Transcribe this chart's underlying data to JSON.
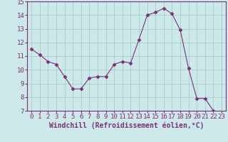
{
  "x": [
    0,
    1,
    2,
    3,
    4,
    5,
    6,
    7,
    8,
    9,
    10,
    11,
    12,
    13,
    14,
    15,
    16,
    17,
    18,
    19,
    20,
    21,
    22,
    23
  ],
  "y": [
    11.5,
    11.1,
    10.6,
    10.4,
    9.5,
    8.6,
    8.6,
    9.4,
    9.5,
    9.5,
    10.4,
    10.6,
    10.5,
    12.2,
    14.0,
    14.2,
    14.5,
    14.1,
    12.9,
    10.1,
    7.9,
    7.9,
    7.0,
    6.7
  ],
  "line_color": "#7b2f7b",
  "marker": "D",
  "marker_size": 2.5,
  "bg_color": "#cce8e8",
  "grid_color": "#a0c8c8",
  "xlabel": "Windchill (Refroidissement éolien,°C)",
  "xlabel_color": "#7b2f7b",
  "tick_color": "#7b2f7b",
  "axis_color": "#7b2f7b",
  "ylim": [
    7,
    15
  ],
  "xlim": [
    -0.5,
    23.5
  ],
  "yticks": [
    7,
    8,
    9,
    10,
    11,
    12,
    13,
    14,
    15
  ],
  "xticks": [
    0,
    1,
    2,
    3,
    4,
    5,
    6,
    7,
    8,
    9,
    10,
    11,
    12,
    13,
    14,
    15,
    16,
    17,
    18,
    19,
    20,
    21,
    22,
    23
  ],
  "xlabel_fontsize": 7,
  "tick_fontsize": 6.5
}
